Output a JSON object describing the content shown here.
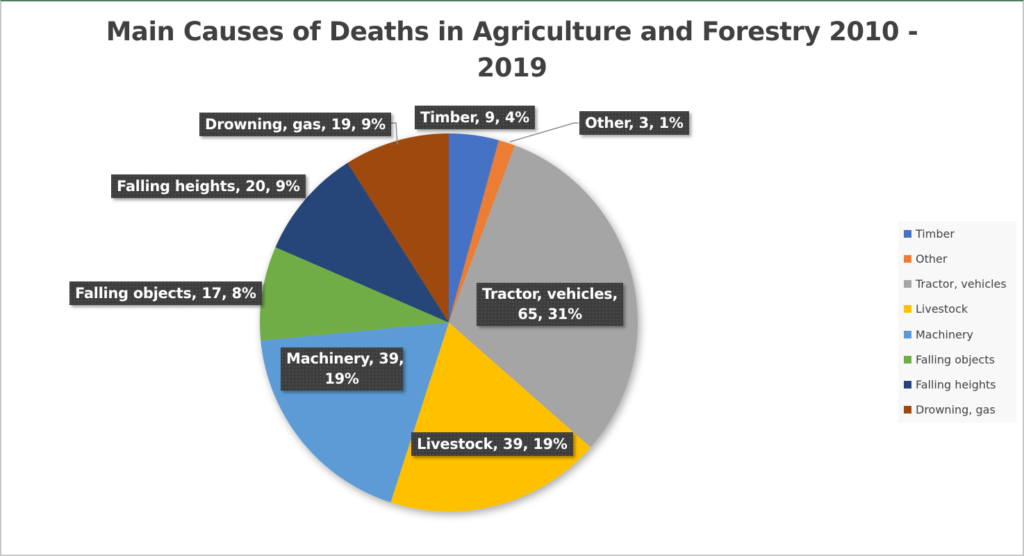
{
  "chart_data": {
    "type": "pie",
    "title": "Main Causes of Deaths in Agriculture and Forestry 2010 - 2019",
    "title_lines": [
      "Main Causes of Deaths in Agriculture and Forestry 2010 -",
      "2019"
    ],
    "categories": [
      "Timber",
      "Other",
      "Tractor, vehicles",
      "Livestock",
      "Machinery",
      "Falling objects",
      "Falling heights",
      "Drowning, gas"
    ],
    "values": [
      9,
      3,
      65,
      39,
      39,
      17,
      20,
      19
    ],
    "percentages": [
      4,
      1,
      31,
      19,
      19,
      8,
      9,
      9
    ],
    "colors": [
      "#4472c4",
      "#ed7d31",
      "#a5a5a5",
      "#ffc000",
      "#5b9bd5",
      "#70ad47",
      "#264478",
      "#9e480e"
    ],
    "data_labels": [
      "Timber, 9, 4%",
      "Other, 3, 1%",
      "Tractor, vehicles, 65, 31%",
      "Livestock, 39, 19%",
      "Machinery, 39, 19%",
      "Falling objects, 17, 8%",
      "Falling heights, 20, 9%",
      "Drowning, gas, 19, 9%"
    ],
    "legend_position": "right",
    "start_angle_deg": 0,
    "direction": "clockwise"
  },
  "labels": {
    "timber": "Timber, 9, 4%",
    "other": "Other, 3, 1%",
    "tractor_line1": "Tractor, vehicles,",
    "tractor_line2": "65, 31%",
    "livestock": "Livestock, 39, 19%",
    "machinery_line1": "Machinery, 39,",
    "machinery_line2": "19%",
    "falling_objects": "Falling objects, 17, 8%",
    "falling_heights": "Falling heights, 20, 9%",
    "drowning": "Drowning, gas, 19, 9%"
  },
  "legend": {
    "items": [
      {
        "label": "Timber",
        "color": "#4472c4"
      },
      {
        "label": "Other",
        "color": "#ed7d31"
      },
      {
        "label": "Tractor, vehicles",
        "color": "#a5a5a5"
      },
      {
        "label": "Livestock",
        "color": "#ffc000"
      },
      {
        "label": "Machinery",
        "color": "#5b9bd5"
      },
      {
        "label": "Falling objects",
        "color": "#70ad47"
      },
      {
        "label": "Falling heights",
        "color": "#264478"
      },
      {
        "label": "Drowning, gas",
        "color": "#9e480e"
      }
    ]
  }
}
